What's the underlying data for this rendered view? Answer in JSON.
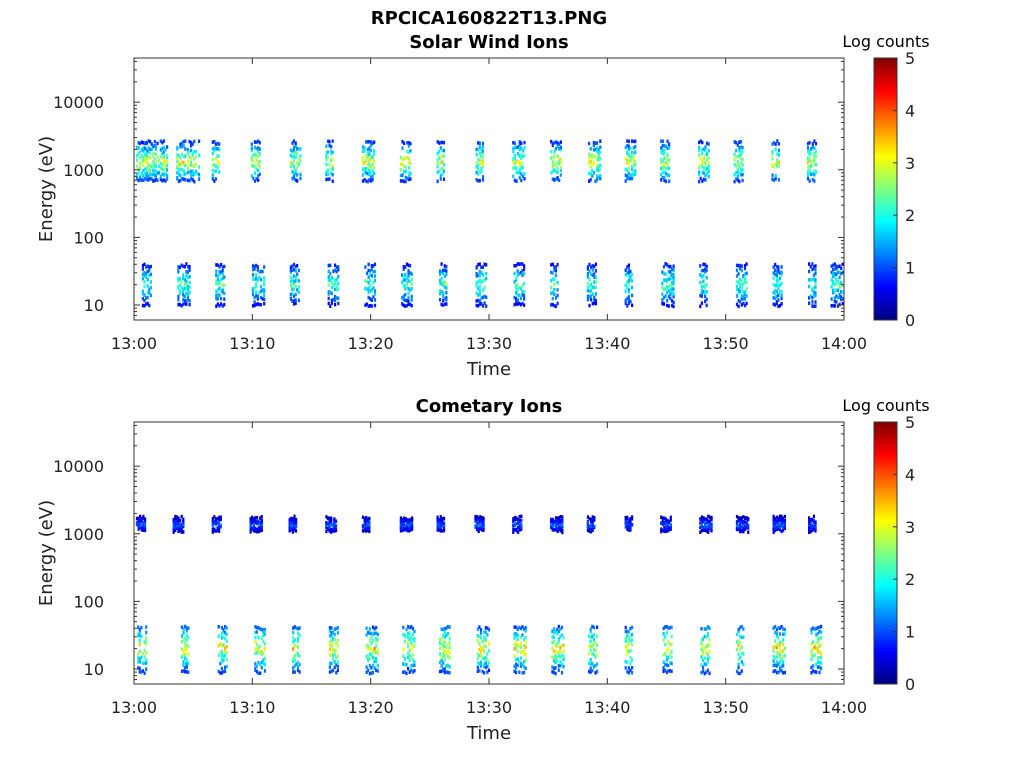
{
  "figure": {
    "title": "RPCICA160822T13.PNG"
  },
  "chart_data": [
    {
      "type": "heatmap",
      "title": "Solar Wind Ions",
      "xlabel": "Time",
      "ylabel": "Energy (eV)",
      "x_range": [
        "13:00",
        "14:00"
      ],
      "x_ticks": [
        "13:00",
        "13:10",
        "13:20",
        "13:30",
        "13:40",
        "13:50",
        "14:00"
      ],
      "x_tick_minutes": [
        0,
        10,
        20,
        30,
        40,
        50,
        60
      ],
      "y_scale": "log",
      "y_range": [
        6,
        45000
      ],
      "y_ticks": [
        "10",
        "100",
        "1000",
        "10000"
      ],
      "y_tick_values": [
        10,
        100,
        1000,
        10000
      ],
      "colorbar": {
        "label": "Log counts",
        "range": [
          0,
          5
        ],
        "ticks": [
          "0",
          "1",
          "2",
          "3",
          "4",
          "5"
        ]
      },
      "grid": false,
      "clusters": [
        {
          "minutes": [
            0.5,
            1.2,
            2.1,
            3.9,
            4.8,
            6.9,
            10.2,
            13.5,
            16.5,
            19.6,
            22.8,
            25.9,
            29.2,
            32.3,
            35.5,
            38.7,
            41.8,
            44.8,
            48.0,
            51.0,
            54.2,
            57.2
          ],
          "energy_center": 1300,
          "energy_span": [
            700,
            2500
          ],
          "peak_log_counts": 2.6
        },
        {
          "minutes": [
            1.0,
            4.0,
            7.2,
            10.3,
            13.5,
            16.7,
            19.8,
            22.9,
            26.1,
            29.2,
            32.4,
            35.5,
            38.6,
            41.8,
            44.9,
            48.1,
            51.2,
            54.3,
            57.3,
            59.2
          ],
          "energy_center": 20,
          "energy_span": [
            10,
            38
          ],
          "peak_log_counts": 2.0
        }
      ]
    },
    {
      "type": "heatmap",
      "title": "Cometary Ions",
      "xlabel": "Time",
      "ylabel": "Energy (eV)",
      "x_range": [
        "13:00",
        "14:00"
      ],
      "x_ticks": [
        "13:00",
        "13:10",
        "13:20",
        "13:30",
        "13:40",
        "13:50",
        "14:00"
      ],
      "x_tick_minutes": [
        0,
        10,
        20,
        30,
        40,
        50,
        60
      ],
      "y_scale": "log",
      "y_range": [
        6,
        45000
      ],
      "y_ticks": [
        "10",
        "100",
        "1000",
        "10000"
      ],
      "y_tick_values": [
        10,
        100,
        1000,
        10000
      ],
      "colorbar": {
        "label": "Log counts",
        "range": [
          0,
          5
        ],
        "ticks": [
          "0",
          "1",
          "2",
          "3",
          "4",
          "5"
        ]
      },
      "grid": false,
      "clusters": [
        {
          "minutes": [
            0.5,
            3.6,
            6.9,
            10.1,
            13.4,
            16.5,
            19.6,
            22.8,
            25.9,
            29.1,
            32.3,
            35.5,
            38.6,
            41.8,
            44.8,
            48.1,
            51.2,
            54.3,
            57.3
          ],
          "energy_center": 1350,
          "energy_span": [
            1100,
            1700
          ],
          "peak_log_counts": 1.0
        },
        {
          "minutes": [
            0.6,
            4.3,
            7.4,
            10.5,
            13.7,
            16.8,
            19.9,
            23.0,
            26.1,
            29.3,
            32.4,
            35.6,
            38.7,
            41.8,
            45.0,
            48.2,
            51.2,
            54.3,
            57.5
          ],
          "energy_center": 20,
          "energy_span": [
            9,
            40
          ],
          "peak_log_counts": 2.8
        }
      ]
    }
  ]
}
